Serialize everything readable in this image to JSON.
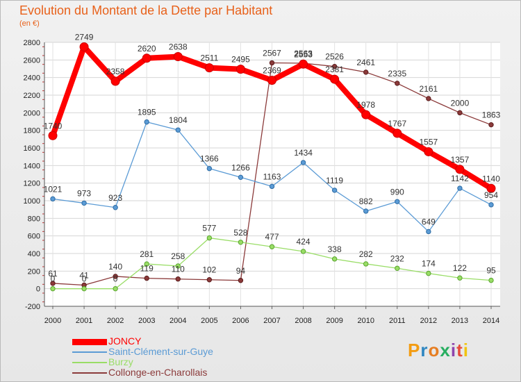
{
  "title": "Evolution du Montant de la Dette par Habitant",
  "subtitle": "(en €)",
  "logo": {
    "text": "Proxiti",
    "colors": [
      "#f39c12",
      "#2e86c1",
      "#e67e22",
      "#27ae60",
      "#8e44ad",
      "#e74c3c",
      "#f1c40f"
    ]
  },
  "chart_data": {
    "type": "line",
    "title": "Evolution du Montant de la Dette par Habitant",
    "ylabel": "(en €)",
    "x": [
      "2000",
      "2001",
      "2002",
      "2003",
      "2004",
      "2005",
      "2006",
      "2007",
      "2008",
      "2009",
      "2010",
      "2011",
      "2012",
      "2013",
      "2014"
    ],
    "ylim": [
      -200,
      2800
    ],
    "yticks": [
      -200,
      0,
      200,
      400,
      600,
      800,
      1000,
      1200,
      1400,
      1600,
      1800,
      2000,
      2200,
      2400,
      2600,
      2800
    ],
    "grid": true,
    "legend_position": "bottom-left",
    "series": [
      {
        "name": "JONCY",
        "color": "#ff0000",
        "values": [
          1740,
          2749,
          2358,
          2620,
          2638,
          2511,
          2495,
          2369,
          2553,
          2381,
          1978,
          1767,
          1557,
          1357,
          1140
        ],
        "labels": [
          "1740",
          "2749",
          "2358",
          "2620",
          "2638",
          "2511",
          "2495",
          "2369",
          "2553",
          "2381",
          "1978",
          "1767",
          "1557",
          "1357",
          "1140"
        ]
      },
      {
        "name": "Saint-Clément-sur-Guye",
        "color": "#5b9bd5",
        "values": [
          1021,
          973,
          923,
          1895,
          1804,
          1366,
          1266,
          1163,
          1434,
          1119,
          882,
          990,
          649,
          1142,
          954
        ],
        "labels": [
          "1021",
          "973",
          "923",
          "1895",
          "1804",
          "1366",
          "1266",
          "1163",
          "1434",
          "1119",
          "882",
          "990",
          "649",
          "1142",
          "954"
        ]
      },
      {
        "name": "Burzy",
        "color": "#99dd66",
        "values": [
          0,
          0,
          0,
          281,
          258,
          577,
          528,
          477,
          424,
          338,
          282,
          232,
          174,
          122,
          95
        ],
        "labels": [
          "0",
          "0",
          "0",
          "281",
          "258",
          "577",
          "528",
          "477",
          "424",
          "338",
          "282",
          "232",
          "174",
          "122",
          "95"
        ]
      },
      {
        "name": "Collonge-en-Charollais",
        "color": "#8b3a3a",
        "values": [
          61,
          41,
          140,
          119,
          110,
          102,
          94,
          2567,
          2563,
          2526,
          2461,
          2335,
          2161,
          2000,
          1863
        ],
        "labels": [
          "61",
          "41",
          "140",
          "119",
          "110",
          "102",
          "94",
          "2567",
          "2563",
          "2526",
          "2461",
          "2335",
          "2161",
          "2000",
          "1863"
        ]
      }
    ]
  }
}
